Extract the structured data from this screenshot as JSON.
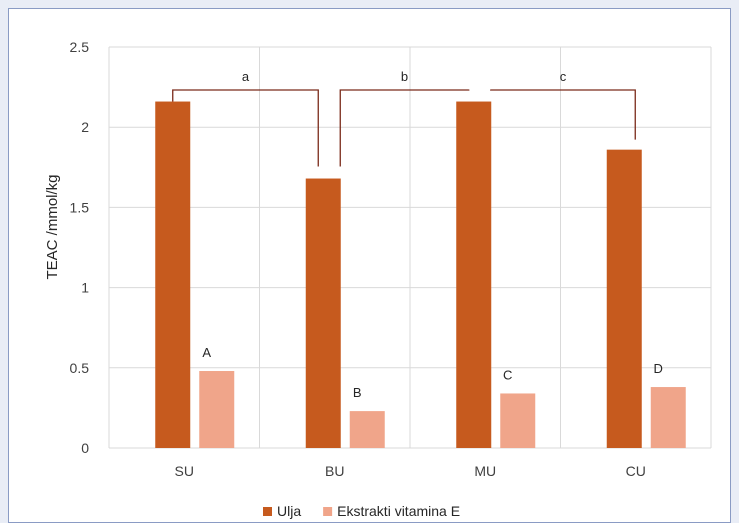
{
  "chart_data": {
    "type": "bar",
    "categories": [
      "SU",
      "BU",
      "MU",
      "CU"
    ],
    "series": [
      {
        "name": "Ulja",
        "color": "#c65a1e",
        "values": [
          2.16,
          1.68,
          2.16,
          1.86
        ]
      },
      {
        "name": "Ekstrakti vitamina E",
        "color": "#f0a58a",
        "values": [
          0.48,
          0.23,
          0.34,
          0.38
        ]
      }
    ],
    "bar_labels": [
      "A",
      "B",
      "C",
      "D"
    ],
    "brackets": [
      {
        "label": "a",
        "from": 0,
        "to": 1
      },
      {
        "label": "b",
        "from": 1,
        "to": 2
      },
      {
        "label": "c",
        "from": 2,
        "to": 3
      }
    ],
    "ylabel": "TEAC /mmol/kg",
    "xlabel": "",
    "ylim": [
      0,
      2.5
    ],
    "yticks": [
      "0",
      "0.5",
      "1",
      "1.5",
      "2",
      "2.5"
    ],
    "grid": true,
    "legend_position": "bottom",
    "bracket_color": "#7a2a1a",
    "grid_color": "#d9d9d9"
  }
}
